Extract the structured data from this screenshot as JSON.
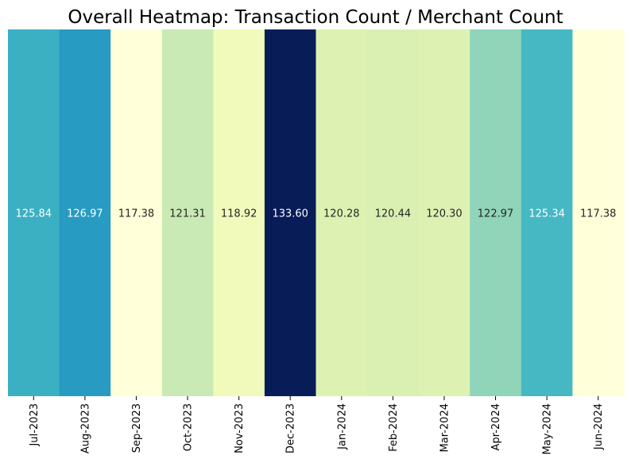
{
  "chart_data": {
    "type": "heatmap",
    "title": "Overall Heatmap: Transaction Count / Merchant Count",
    "xlabel": "",
    "ylabel": "",
    "categories": [
      "Jul-2023",
      "Aug-2023",
      "Sep-2023",
      "Oct-2023",
      "Nov-2023",
      "Dec-2023",
      "Jan-2024",
      "Feb-2024",
      "Mar-2024",
      "Apr-2024",
      "May-2024",
      "Jun-2024"
    ],
    "values": [
      125.84,
      126.97,
      117.38,
      121.31,
      118.92,
      133.6,
      120.28,
      120.44,
      120.3,
      122.97,
      125.34,
      117.38
    ],
    "value_labels": [
      "125.84",
      "126.97",
      "117.38",
      "121.31",
      "118.92",
      "133.60",
      "120.28",
      "120.44",
      "120.30",
      "122.97",
      "125.34",
      "117.38"
    ],
    "colormap": "YlGnBu",
    "colorbar": false,
    "grid": false
  }
}
